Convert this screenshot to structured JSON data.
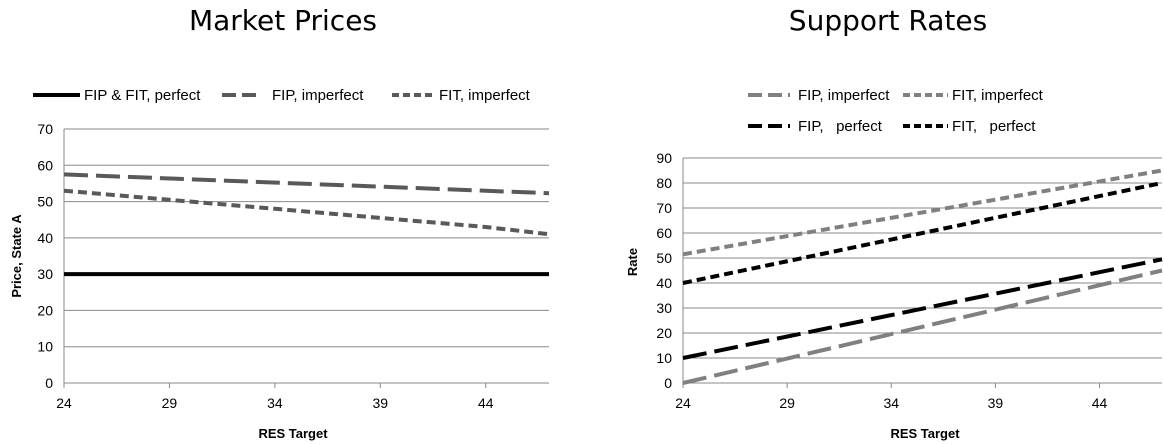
{
  "chart_data": [
    {
      "type": "line",
      "title": "Market Prices",
      "xlabel": "RES Target",
      "ylabel": "Price, State A",
      "xlim": [
        24,
        47
      ],
      "ylim": [
        0,
        70
      ],
      "x_ticks": [
        "24",
        "29",
        "34",
        "39",
        "44"
      ],
      "y_ticks": [
        "0",
        "10",
        "20",
        "30",
        "40",
        "50",
        "60",
        "70"
      ],
      "grid": true,
      "legend_position": "top",
      "series": [
        {
          "name": "FIP & FIT, perfect",
          "x": [
            24,
            47
          ],
          "values": [
            30,
            30
          ],
          "color": "#000000",
          "dash": "solid"
        },
        {
          "name": "FIP, imperfect",
          "x": [
            24,
            47
          ],
          "values": [
            57.5,
            52.3
          ],
          "color": "#595959",
          "dash": "long"
        },
        {
          "name": "FIT, imperfect",
          "x": [
            24,
            29,
            34,
            39,
            44,
            47
          ],
          "values": [
            53,
            50.5,
            48,
            45.5,
            43,
            41
          ],
          "color": "#595959",
          "dash": "short"
        }
      ]
    },
    {
      "type": "line",
      "title": "Support Rates",
      "xlabel": "RES Target",
      "ylabel": "Rate",
      "xlim": [
        24,
        47
      ],
      "ylim": [
        0,
        90
      ],
      "x_ticks": [
        "24",
        "29",
        "34",
        "39",
        "44"
      ],
      "y_ticks": [
        "0",
        "10",
        "20",
        "30",
        "40",
        "50",
        "60",
        "70",
        "80",
        "90"
      ],
      "grid": true,
      "legend_position": "top",
      "series": [
        {
          "name": "FIP, imperfect",
          "x": [
            24,
            47
          ],
          "values": [
            0,
            45
          ],
          "color": "#808080",
          "dash": "long"
        },
        {
          "name": "FIT, imperfect",
          "x": [
            24,
            47
          ],
          "values": [
            51.5,
            85
          ],
          "color": "#808080",
          "dash": "short"
        },
        {
          "name": "FIP,   perfect",
          "x": [
            24,
            47
          ],
          "values": [
            10,
            49.5
          ],
          "color": "#000000",
          "dash": "long"
        },
        {
          "name": "FIT,   perfect",
          "x": [
            24,
            47
          ],
          "values": [
            40,
            80
          ],
          "color": "#000000",
          "dash": "short"
        }
      ]
    }
  ]
}
